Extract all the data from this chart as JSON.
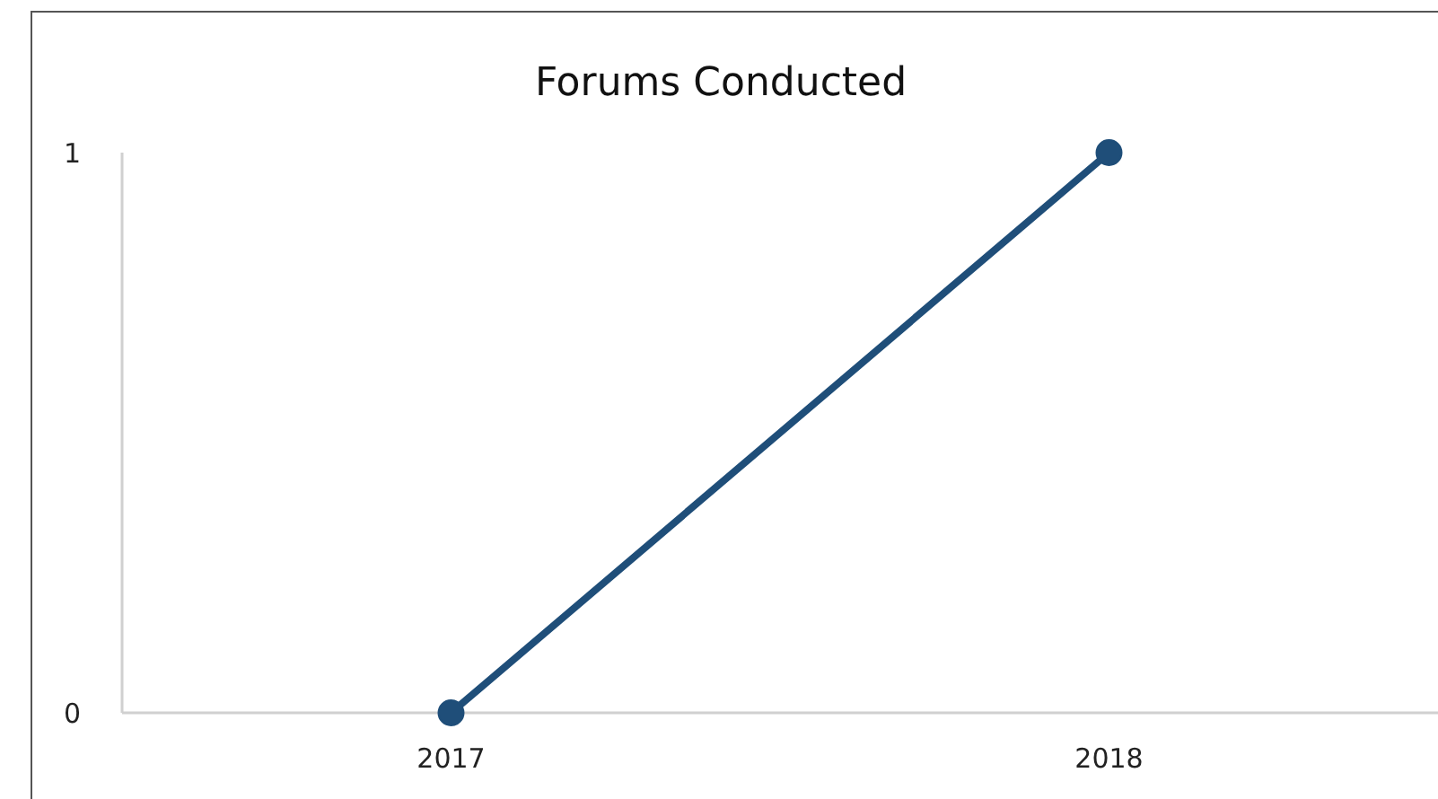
{
  "chart_data": {
    "type": "line",
    "title": "Forums Conducted",
    "categories": [
      "2017",
      "2018"
    ],
    "series": [
      {
        "color": "#1f4e79",
        "values": [
          0,
          1
        ]
      }
    ],
    "ylim": [
      0,
      1
    ],
    "yticks": [
      0,
      1
    ],
    "marker": "circle",
    "line_style": "solid"
  }
}
